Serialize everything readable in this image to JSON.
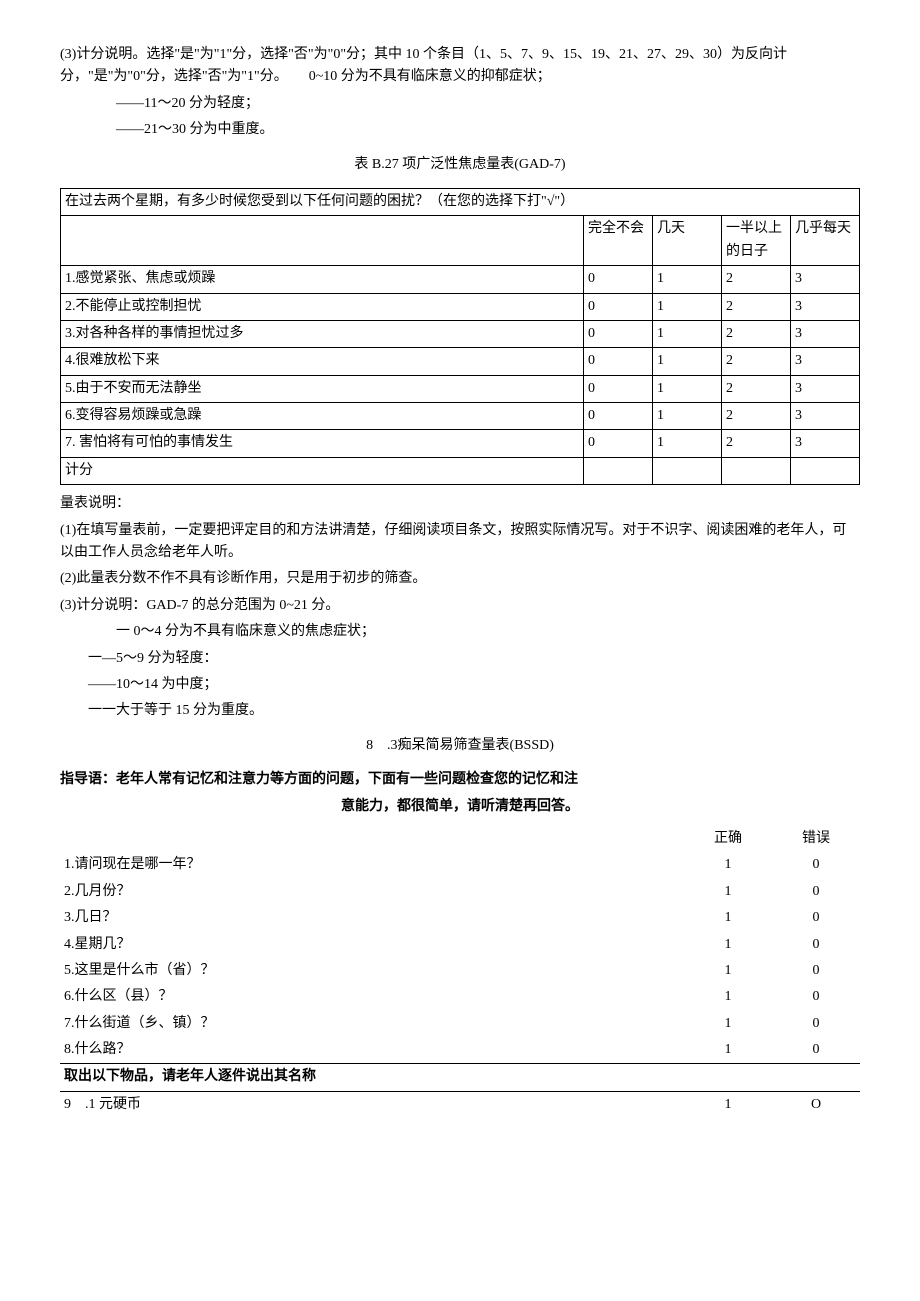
{
  "intro": {
    "p1": "(3)计分说明。选择\"是\"为\"1\"分，选择\"否\"为\"0\"分；其中 10 个条目（1、5、7、9、15、19、21、27、29、30）为反向计分，\"是\"为\"0\"分，选择\"否\"为\"1\"分。　　0~10 分为不具有临床意义的抑郁症状；",
    "p2": "——11～20 分为轻度；",
    "p3": "——21～30 分为中重度。"
  },
  "gad": {
    "caption": "表 B.27 项广泛性焦虑量表(GAD-7)",
    "header_prompt": "在过去两个星期，有多少时候您受到以下任何问题的困扰？（在您的选择下打\"√\"）",
    "cols": {
      "c0": "完全不会",
      "c1": "几天",
      "c2": "一半以上的日子",
      "c3": "几乎每天"
    },
    "rows": [
      {
        "q": "1.感觉紧张、焦虑或烦躁",
        "v0": "0",
        "v1": "1",
        "v2": "2",
        "v3": "3"
      },
      {
        "q": "2.不能停止或控制担忧",
        "v0": "0",
        "v1": "1",
        "v2": "2",
        "v3": "3"
      },
      {
        "q": "3.对各种各样的事情担忧过多",
        "v0": "0",
        "v1": "1",
        "v2": "2",
        "v3": "3"
      },
      {
        "q": "4.很难放松下来",
        "v0": "0",
        "v1": "1",
        "v2": "2",
        "v3": "3"
      },
      {
        "q": "5.由于不安而无法静坐",
        "v0": "0",
        "v1": "1",
        "v2": "2",
        "v3": "3"
      },
      {
        "q": "6.变得容易烦躁或急躁",
        "v0": "0",
        "v1": "1",
        "v2": "2",
        "v3": "3"
      },
      {
        "q": "7. 害怕将有可怕的事情发生",
        "v0": "0",
        "v1": "1",
        "v2": "2",
        "v3": "3"
      }
    ],
    "score_label": "计分",
    "notes_title": "量表说明：",
    "note1": "(1)在填写量表前，一定要把评定目的和方法讲清楚，仔细阅读项目条文，按照实际情况写。对于不识字、阅读困难的老年人，可以由工作人员念给老年人听。",
    "note2": "(2)此量表分数不作不具有诊断作用，只是用于初步的筛查。",
    "note3": "(3)计分说明：GAD-7 的总分范围为 0~21 分。",
    "note3a": "一 0～4 分为不具有临床意义的焦虑症状；",
    "note3b": "一—5～9 分为轻度：",
    "note3c": "——10～14 为中度；",
    "note3d": "一一大于等于 15 分为重度。"
  },
  "bssd": {
    "title": "8　.3痴呆简易筛查量表(BSSD)",
    "instr_line1": "指导语：老年人常有记忆和注意力等方面的问题，下面有一些问题检查您的记忆和注",
    "instr_line2": "意能力，都很简单，请听清楚再回答。",
    "col_correct": "正确",
    "col_wrong": "错误",
    "rows": [
      {
        "q": "1.请问现在是哪一年？",
        "c": "1",
        "w": "0"
      },
      {
        "q": "2.几月份？",
        "c": "1",
        "w": "0"
      },
      {
        "q": "3.几日？",
        "c": "1",
        "w": "0"
      },
      {
        "q": "4.星期几？",
        "c": "1",
        "w": "0"
      },
      {
        "q": "5.这里是什么市（省）？",
        "c": "1",
        "w": "0"
      },
      {
        "q": "6.什么区（县）？",
        "c": "1",
        "w": "0"
      },
      {
        "q": "7.什么街道（乡、镇）？",
        "c": "1",
        "w": "0"
      },
      {
        "q": "8.什么路？",
        "c": "1",
        "w": "0"
      }
    ],
    "sub_header": "取出以下物品，请老年人逐件说出其名称",
    "row9": {
      "q": "9　.1 元硬币",
      "c": "1",
      "w": "O"
    }
  }
}
